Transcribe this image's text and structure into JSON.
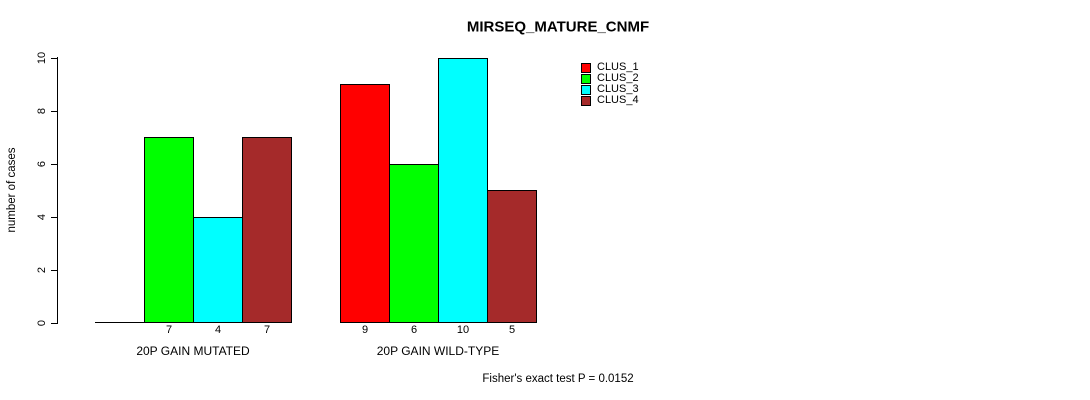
{
  "chart_data": {
    "type": "bar",
    "title": "MIRSEQ_MATURE_CNMF",
    "ylabel": "number of cases",
    "ylim": [
      0,
      10
    ],
    "yticks": [
      0,
      2,
      4,
      6,
      8,
      10
    ],
    "categories": [
      "20P GAIN MUTATED",
      "20P GAIN WILD-TYPE"
    ],
    "series": [
      {
        "name": "CLUS_1",
        "color": "#FF0000",
        "values": [
          0,
          9
        ]
      },
      {
        "name": "CLUS_2",
        "color": "#00FF00",
        "values": [
          7,
          6
        ]
      },
      {
        "name": "CLUS_3",
        "color": "#00FFFF",
        "values": [
          4,
          10
        ]
      },
      {
        "name": "CLUS_4",
        "color": "#A52A2A",
        "values": [
          7,
          5
        ]
      }
    ],
    "bar_labels": [
      [
        "",
        "7",
        "4",
        "7"
      ],
      [
        "9",
        "6",
        "10",
        "5"
      ]
    ],
    "legend_position": "top-right",
    "grid": false,
    "footer": "Fisher's exact test P = 0.0152",
    "axis_color": "#000000",
    "background_color": "#FFFFFF"
  }
}
